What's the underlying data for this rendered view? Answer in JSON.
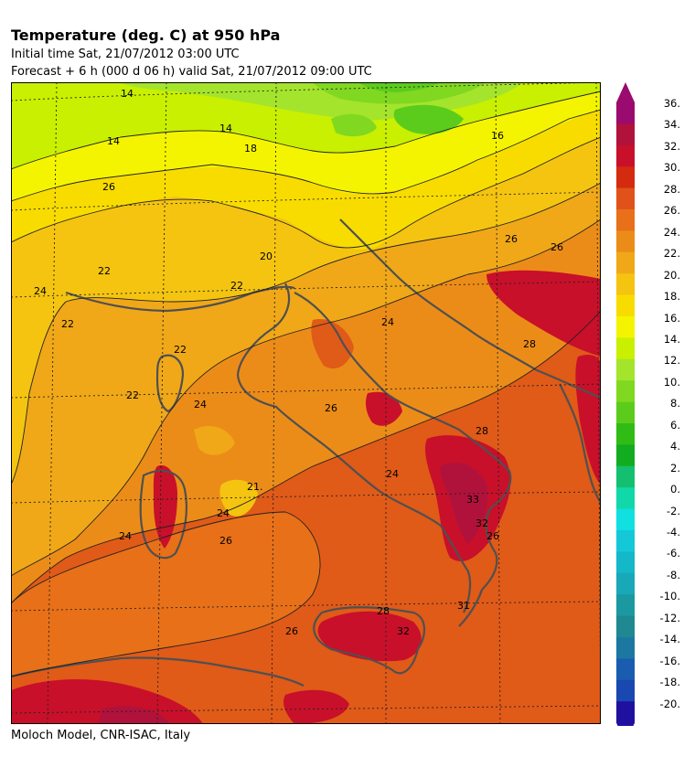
{
  "header": {
    "title": "Temperature (deg. C) at 950 hPa",
    "initial_time": "Initial time  Sat, 21/07/2012  03:00 UTC",
    "forecast": "Forecast  +    6 h  (000 d 06 h)  valid Sat, 21/07/2012 09:00 UTC"
  },
  "footer": {
    "credit": "Moloch Model, CNR-ISAC, Italy"
  },
  "colorbar": {
    "labels": [
      "36.",
      "34.",
      "32.",
      "30.",
      "28.",
      "26.",
      "24.",
      "22.",
      "20.",
      "18.",
      "16.",
      "14.",
      "12.",
      "10.",
      "8.",
      "6.",
      "4.",
      "2.",
      "0.",
      "-2.",
      "-4.",
      "-6.",
      "-8.",
      "-10.",
      "-12.",
      "-14.",
      "-16.",
      "-18.",
      "-20."
    ],
    "colors": [
      "#9b0a6e",
      "#b0123c",
      "#c8102a",
      "#d42a10",
      "#e0521a",
      "#e8701a",
      "#ec8c18",
      "#f0a818",
      "#f4c410",
      "#f8dc00",
      "#f4f400",
      "#c8f000",
      "#a4e42c",
      "#80d820",
      "#5ccc1c",
      "#30bc14",
      "#12ac20",
      "#14c070",
      "#10d8a8",
      "#10e0e0",
      "#14c8d8",
      "#14b8c8",
      "#18a8b8",
      "#1c98a0",
      "#208890",
      "#1c78a0",
      "#1a5cb0",
      "#1848b0",
      "#2010a0"
    ]
  },
  "map": {
    "contour_labels": [
      {
        "text": "14"
      },
      {
        "text": "14"
      },
      {
        "text": "14"
      },
      {
        "text": "16"
      },
      {
        "text": "18"
      },
      {
        "text": "20"
      },
      {
        "text": "22"
      },
      {
        "text": "22"
      },
      {
        "text": "22"
      },
      {
        "text": "22"
      },
      {
        "text": "24"
      },
      {
        "text": "24"
      },
      {
        "text": "24"
      },
      {
        "text": "24"
      },
      {
        "text": "24"
      },
      {
        "text": "24"
      },
      {
        "text": "26"
      },
      {
        "text": "26"
      },
      {
        "text": "26"
      },
      {
        "text": "26"
      },
      {
        "text": "26"
      },
      {
        "text": "26"
      },
      {
        "text": "28"
      },
      {
        "text": "28"
      },
      {
        "text": "28"
      },
      {
        "text": "21."
      },
      {
        "text": "33"
      },
      {
        "text": "32"
      },
      {
        "text": "31"
      },
      {
        "text": "32"
      },
      {
        "text": "22"
      },
      {
        "text": "26"
      }
    ]
  }
}
